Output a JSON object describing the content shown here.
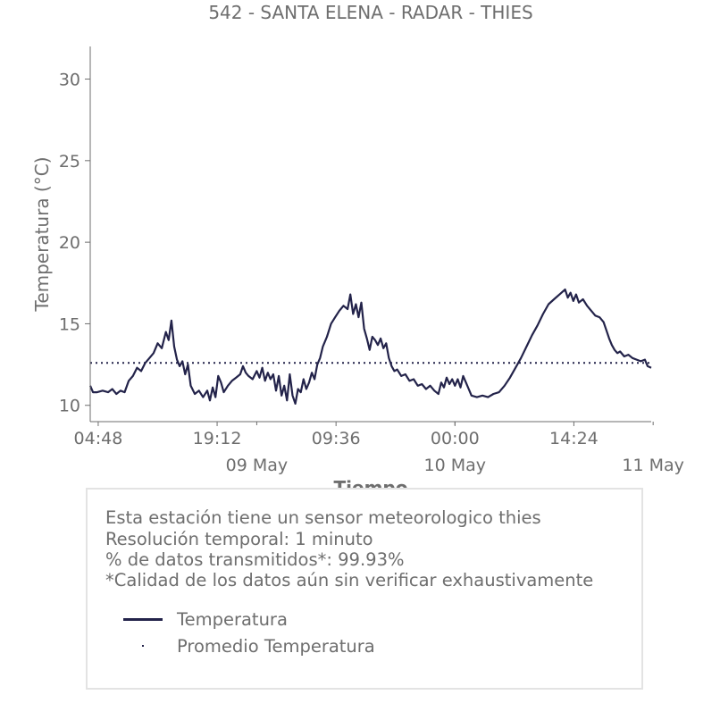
{
  "chart_data": {
    "type": "line",
    "title": "542 - SANTA ELENA - RADAR - THIES",
    "xlabel": "Tiempo",
    "ylabel": "Temperatura (°C)",
    "ylim": [
      9,
      32
    ],
    "xlim": [
      "2025-05-08T03:50",
      "2025-05-10T23:46"
    ],
    "yticks": [
      10,
      15,
      20,
      25,
      30
    ],
    "xticks_time": [
      {
        "t": "2025-05-08T04:48",
        "label": "04:48"
      },
      {
        "t": "2025-05-08T19:12",
        "label": "19:12"
      },
      {
        "t": "2025-05-09T09:36",
        "label": "09:36"
      },
      {
        "t": "2025-05-10T00:00",
        "label": "00:00"
      },
      {
        "t": "2025-05-10T14:24",
        "label": "14:24"
      }
    ],
    "xticks_date": [
      {
        "t": "2025-05-09T00:00",
        "label": "09 May"
      },
      {
        "t": "2025-05-10T00:00",
        "label": "10 May"
      },
      {
        "t": "2025-05-11T00:00",
        "label": "11 May"
      }
    ],
    "grid": false,
    "series": [
      {
        "name": "Temperatura",
        "color": "#23234a",
        "style": "solid",
        "points": [
          [
            "2025-05-08T03:50",
            11.2
          ],
          [
            "2025-05-08T04:10",
            10.8
          ],
          [
            "2025-05-08T04:40",
            10.8
          ],
          [
            "2025-05-08T05:20",
            10.9
          ],
          [
            "2025-05-08T06:00",
            10.8
          ],
          [
            "2025-05-08T06:30",
            11.0
          ],
          [
            "2025-05-08T07:00",
            10.7
          ],
          [
            "2025-05-08T07:30",
            10.9
          ],
          [
            "2025-05-08T08:00",
            10.8
          ],
          [
            "2025-05-08T08:30",
            11.5
          ],
          [
            "2025-05-08T09:00",
            11.8
          ],
          [
            "2025-05-08T09:30",
            12.3
          ],
          [
            "2025-05-08T10:00",
            12.1
          ],
          [
            "2025-05-08T10:30",
            12.6
          ],
          [
            "2025-05-08T11:00",
            12.9
          ],
          [
            "2025-05-08T11:30",
            13.2
          ],
          [
            "2025-05-08T12:00",
            13.8
          ],
          [
            "2025-05-08T12:30",
            13.5
          ],
          [
            "2025-05-08T13:00",
            14.5
          ],
          [
            "2025-05-08T13:20",
            14.0
          ],
          [
            "2025-05-08T13:40",
            15.2
          ],
          [
            "2025-05-08T14:00",
            13.6
          ],
          [
            "2025-05-08T14:20",
            12.8
          ],
          [
            "2025-05-08T14:40",
            12.4
          ],
          [
            "2025-05-08T15:00",
            12.7
          ],
          [
            "2025-05-08T15:20",
            11.9
          ],
          [
            "2025-05-08T15:40",
            12.5
          ],
          [
            "2025-05-08T16:00",
            11.2
          ],
          [
            "2025-05-08T16:30",
            10.7
          ],
          [
            "2025-05-08T17:00",
            10.9
          ],
          [
            "2025-05-08T17:30",
            10.5
          ],
          [
            "2025-05-08T18:00",
            10.9
          ],
          [
            "2025-05-08T18:20",
            10.3
          ],
          [
            "2025-05-08T18:40",
            11.1
          ],
          [
            "2025-05-08T19:00",
            10.5
          ],
          [
            "2025-05-08T19:20",
            11.8
          ],
          [
            "2025-05-08T19:40",
            11.4
          ],
          [
            "2025-05-08T20:00",
            10.8
          ],
          [
            "2025-05-08T20:30",
            11.2
          ],
          [
            "2025-05-08T21:00",
            11.5
          ],
          [
            "2025-05-08T21:30",
            11.7
          ],
          [
            "2025-05-08T22:00",
            11.9
          ],
          [
            "2025-05-08T22:20",
            12.4
          ],
          [
            "2025-05-08T22:40",
            12.0
          ],
          [
            "2025-05-08T23:00",
            11.8
          ],
          [
            "2025-05-08T23:30",
            11.6
          ],
          [
            "2025-05-09T00:00",
            12.1
          ],
          [
            "2025-05-09T00:20",
            11.7
          ],
          [
            "2025-05-09T00:40",
            12.3
          ],
          [
            "2025-05-09T01:00",
            11.5
          ],
          [
            "2025-05-09T01:20",
            12.0
          ],
          [
            "2025-05-09T01:40",
            11.6
          ],
          [
            "2025-05-09T02:00",
            11.9
          ],
          [
            "2025-05-09T02:20",
            10.9
          ],
          [
            "2025-05-09T02:40",
            11.8
          ],
          [
            "2025-05-09T03:00",
            10.6
          ],
          [
            "2025-05-09T03:20",
            11.2
          ],
          [
            "2025-05-09T03:40",
            10.3
          ],
          [
            "2025-05-09T04:00",
            11.9
          ],
          [
            "2025-05-09T04:20",
            10.6
          ],
          [
            "2025-05-09T04:40",
            10.1
          ],
          [
            "2025-05-09T05:00",
            11.0
          ],
          [
            "2025-05-09T05:20",
            10.8
          ],
          [
            "2025-05-09T05:40",
            11.6
          ],
          [
            "2025-05-09T06:00",
            11.0
          ],
          [
            "2025-05-09T06:20",
            11.4
          ],
          [
            "2025-05-09T06:40",
            12.0
          ],
          [
            "2025-05-09T07:00",
            11.6
          ],
          [
            "2025-05-09T07:20",
            12.5
          ],
          [
            "2025-05-09T07:40",
            12.9
          ],
          [
            "2025-05-09T08:00",
            13.6
          ],
          [
            "2025-05-09T08:30",
            14.2
          ],
          [
            "2025-05-09T09:00",
            15.0
          ],
          [
            "2025-05-09T09:30",
            15.4
          ],
          [
            "2025-05-09T10:00",
            15.8
          ],
          [
            "2025-05-09T10:30",
            16.1
          ],
          [
            "2025-05-09T11:00",
            15.9
          ],
          [
            "2025-05-09T11:20",
            16.8
          ],
          [
            "2025-05-09T11:40",
            15.6
          ],
          [
            "2025-05-09T12:00",
            16.2
          ],
          [
            "2025-05-09T12:20",
            15.4
          ],
          [
            "2025-05-09T12:40",
            16.3
          ],
          [
            "2025-05-09T13:00",
            14.7
          ],
          [
            "2025-05-09T13:20",
            14.1
          ],
          [
            "2025-05-09T13:40",
            13.4
          ],
          [
            "2025-05-09T14:00",
            14.2
          ],
          [
            "2025-05-09T14:20",
            14.0
          ],
          [
            "2025-05-09T14:40",
            13.7
          ],
          [
            "2025-05-09T15:00",
            14.1
          ],
          [
            "2025-05-09T15:20",
            13.5
          ],
          [
            "2025-05-09T15:40",
            13.8
          ],
          [
            "2025-05-09T16:00",
            12.9
          ],
          [
            "2025-05-09T16:20",
            12.4
          ],
          [
            "2025-05-09T16:40",
            12.1
          ],
          [
            "2025-05-09T17:00",
            12.2
          ],
          [
            "2025-05-09T17:30",
            11.8
          ],
          [
            "2025-05-09T18:00",
            11.9
          ],
          [
            "2025-05-09T18:30",
            11.5
          ],
          [
            "2025-05-09T19:00",
            11.6
          ],
          [
            "2025-05-09T19:30",
            11.2
          ],
          [
            "2025-05-09T20:00",
            11.3
          ],
          [
            "2025-05-09T20:30",
            11.0
          ],
          [
            "2025-05-09T21:00",
            11.2
          ],
          [
            "2025-05-09T21:30",
            10.9
          ],
          [
            "2025-05-09T22:00",
            10.7
          ],
          [
            "2025-05-09T22:20",
            11.4
          ],
          [
            "2025-05-09T22:40",
            11.1
          ],
          [
            "2025-05-09T23:00",
            11.7
          ],
          [
            "2025-05-09T23:20",
            11.3
          ],
          [
            "2025-05-09T23:40",
            11.6
          ],
          [
            "2025-05-10T00:00",
            11.2
          ],
          [
            "2025-05-10T00:20",
            11.6
          ],
          [
            "2025-05-10T00:40",
            11.1
          ],
          [
            "2025-05-10T01:00",
            11.8
          ],
          [
            "2025-05-10T01:20",
            11.4
          ],
          [
            "2025-05-10T01:40",
            11.0
          ],
          [
            "2025-05-10T02:00",
            10.6
          ],
          [
            "2025-05-10T02:40",
            10.5
          ],
          [
            "2025-05-10T03:20",
            10.6
          ],
          [
            "2025-05-10T04:00",
            10.5
          ],
          [
            "2025-05-10T04:40",
            10.7
          ],
          [
            "2025-05-10T05:20",
            10.8
          ],
          [
            "2025-05-10T06:00",
            11.2
          ],
          [
            "2025-05-10T06:40",
            11.7
          ],
          [
            "2025-05-10T07:20",
            12.3
          ],
          [
            "2025-05-10T08:00",
            12.9
          ],
          [
            "2025-05-10T08:40",
            13.6
          ],
          [
            "2025-05-10T09:20",
            14.3
          ],
          [
            "2025-05-10T10:00",
            14.9
          ],
          [
            "2025-05-10T10:40",
            15.6
          ],
          [
            "2025-05-10T11:20",
            16.2
          ],
          [
            "2025-05-10T12:00",
            16.5
          ],
          [
            "2025-05-10T12:40",
            16.8
          ],
          [
            "2025-05-10T13:20",
            17.1
          ],
          [
            "2025-05-10T13:40",
            16.6
          ],
          [
            "2025-05-10T14:00",
            16.9
          ],
          [
            "2025-05-10T14:20",
            16.4
          ],
          [
            "2025-05-10T14:40",
            16.8
          ],
          [
            "2025-05-10T15:00",
            16.3
          ],
          [
            "2025-05-10T15:30",
            16.5
          ],
          [
            "2025-05-10T16:00",
            16.1
          ],
          [
            "2025-05-10T16:30",
            15.8
          ],
          [
            "2025-05-10T17:00",
            15.5
          ],
          [
            "2025-05-10T17:30",
            15.4
          ],
          [
            "2025-05-10T18:00",
            15.1
          ],
          [
            "2025-05-10T18:20",
            14.6
          ],
          [
            "2025-05-10T18:40",
            14.1
          ],
          [
            "2025-05-10T19:00",
            13.7
          ],
          [
            "2025-05-10T19:20",
            13.4
          ],
          [
            "2025-05-10T19:40",
            13.2
          ],
          [
            "2025-05-10T20:00",
            13.3
          ],
          [
            "2025-05-10T20:30",
            13.0
          ],
          [
            "2025-05-10T21:00",
            13.1
          ],
          [
            "2025-05-10T21:30",
            12.9
          ],
          [
            "2025-05-10T22:00",
            12.8
          ],
          [
            "2025-05-10T22:30",
            12.7
          ],
          [
            "2025-05-10T23:00",
            12.8
          ],
          [
            "2025-05-10T23:20",
            12.4
          ],
          [
            "2025-05-10T23:46",
            12.3
          ]
        ]
      },
      {
        "name": "Promedio Temperatura",
        "color": "#23234a",
        "style": "dotted",
        "value": 12.6
      }
    ]
  },
  "info": {
    "line1": "Esta estación tiene un sensor meteorologico thies",
    "line2": "Resolución temporal: 1 minuto",
    "line3": "% de datos transmitidos*: 99.93%",
    "line4": "*Calidad de los datos aún sin verificar exhaustivamente"
  },
  "legend": {
    "position": "bottom-center",
    "items": [
      {
        "label": "Temperatura",
        "marker": "line"
      },
      {
        "label": "Promedio Temperatura",
        "marker": "dot"
      }
    ]
  }
}
